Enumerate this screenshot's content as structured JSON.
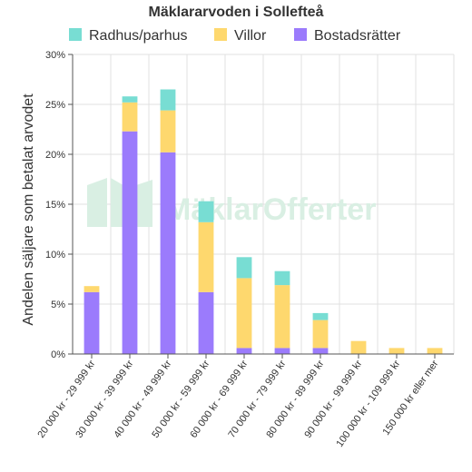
{
  "chart_data": {
    "type": "bar",
    "stacked": true,
    "title": "Mäklararvoden i Sollefteå",
    "xlabel": "",
    "ylabel": "Andelen säljare som betalat arvodet",
    "ylim": [
      0,
      30
    ],
    "yticks": [
      "0%",
      "5%",
      "10%",
      "15%",
      "20%",
      "25%",
      "30%"
    ],
    "grid": true,
    "legend_position": "top",
    "categories": [
      "20 000 kr - 29 999 kr",
      "30 000 kr - 39 999 kr",
      "40 000 kr - 49 999 kr",
      "50 000 kr - 59 999 kr",
      "60 000 kr - 69 999 kr",
      "70 000 kr - 79 999 kr",
      "80 000 kr - 89 999 kr",
      "90 000 kr - 99 999 kr",
      "100 000 kr - 109 999 kr",
      "150 000 kr eller mer"
    ],
    "series": [
      {
        "name": "Bostadsrätter",
        "color": "#9b7bfc",
        "values": [
          6.2,
          22.3,
          20.2,
          6.2,
          0.6,
          0.6,
          0.6,
          0,
          0,
          0
        ]
      },
      {
        "name": "Villor",
        "color": "#fed86e",
        "values": [
          0.6,
          2.9,
          4.2,
          7.0,
          7.0,
          6.3,
          2.8,
          1.3,
          0.6,
          0.6
        ]
      },
      {
        "name": "Radhus/parhus",
        "color": "#78ddd3",
        "values": [
          0,
          0.6,
          2.1,
          2.1,
          2.1,
          1.4,
          0.7,
          0,
          0,
          0
        ]
      }
    ],
    "legend_order": [
      "Radhus/parhus",
      "Villor",
      "Bostadsrätter"
    ]
  },
  "watermark": {
    "text": "MäklarOfferter",
    "color": "#d9efe3"
  }
}
